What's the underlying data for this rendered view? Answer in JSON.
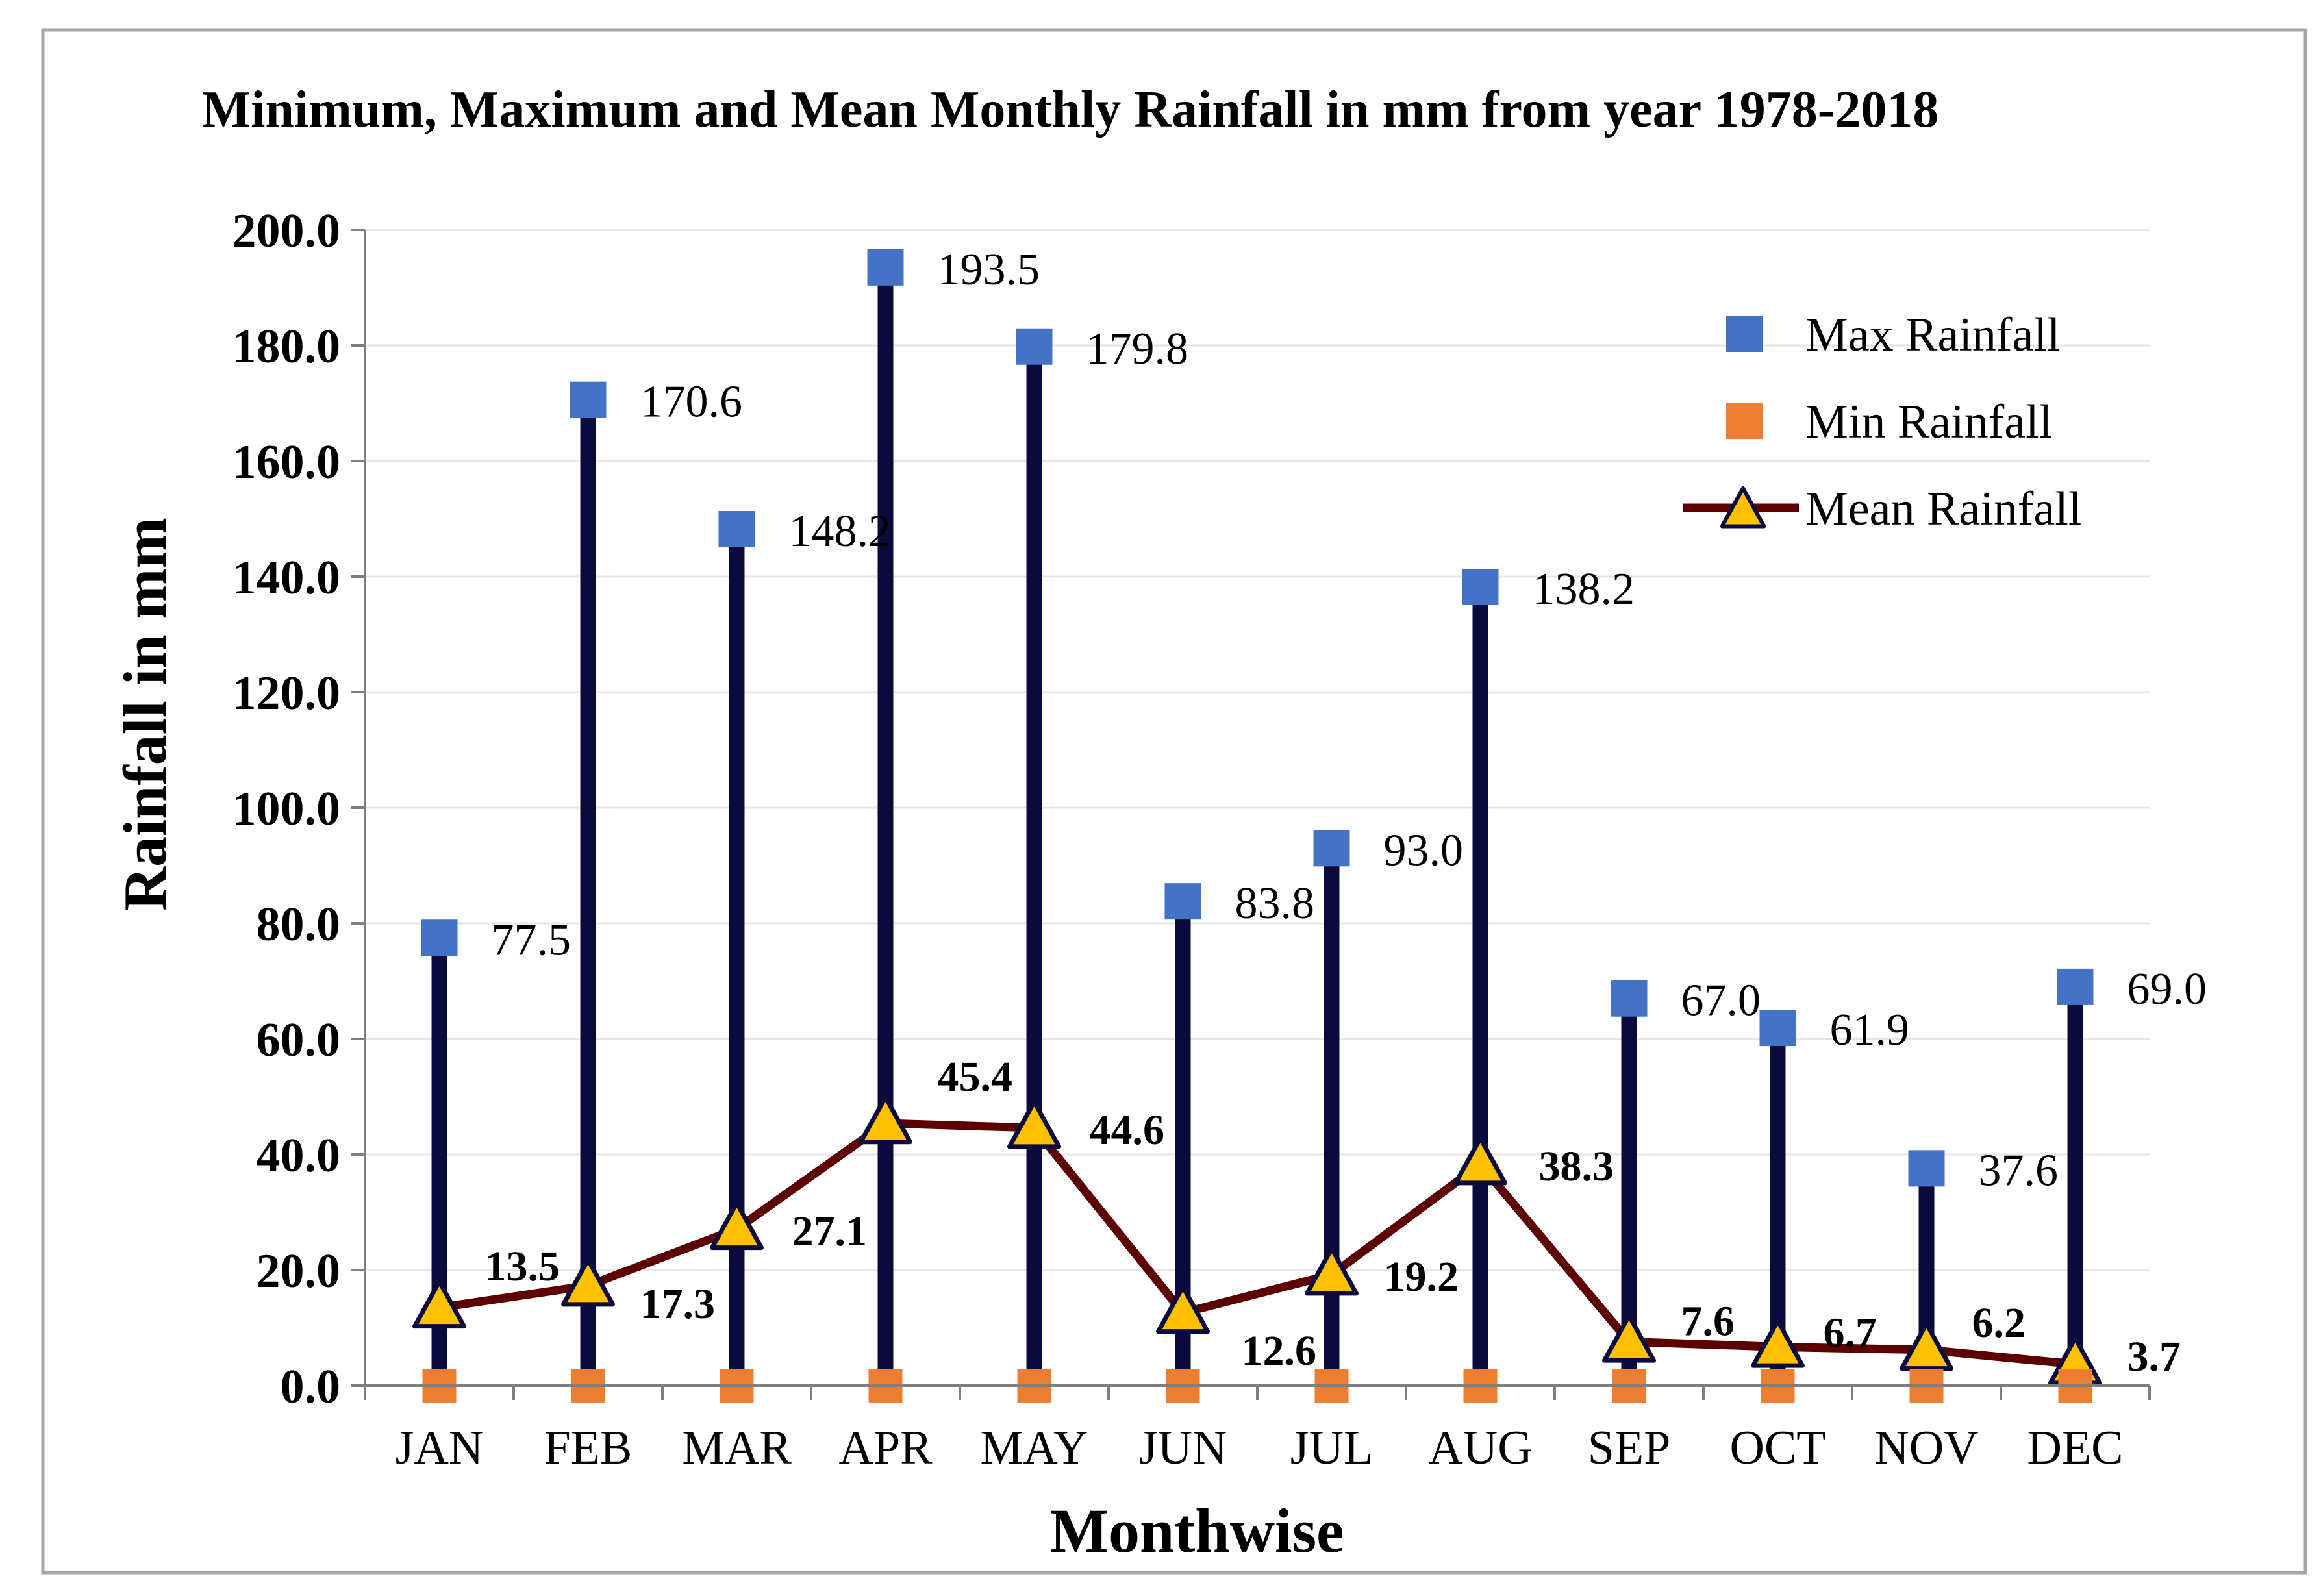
{
  "chart_data": {
    "type": "line",
    "title": "Minimum, Maximum and Mean Monthly Rainfall in mm from year 1978-2018",
    "xlabel": "Monthwise",
    "ylabel": "Rainfall in mm",
    "ylim": [
      0,
      200
    ],
    "ytick_step": 20,
    "ytick_labels": [
      "0.0",
      "20.0",
      "40.0",
      "60.0",
      "80.0",
      "100.0",
      "120.0",
      "140.0",
      "160.0",
      "180.0",
      "200.0"
    ],
    "grid": true,
    "legend_position": "top-right",
    "categories": [
      "JAN",
      "FEB",
      "MAR",
      "APR",
      "MAY",
      "JUN",
      "JUL",
      "AUG",
      "SEP",
      "OCT",
      "NOV",
      "DEC"
    ],
    "series": [
      {
        "name": "Max Rainfall",
        "marker": "square",
        "color": "#4472C4",
        "values": [
          77.5,
          170.6,
          148.2,
          193.5,
          179.8,
          83.8,
          93.0,
          138.2,
          67.0,
          61.9,
          37.6,
          69.0
        ],
        "labels": [
          "77.5",
          "170.6",
          "148.2",
          "193.5",
          "179.8",
          "83.8",
          "93.0",
          "138.2",
          "67.0",
          "61.9",
          "37.6",
          "69.0"
        ]
      },
      {
        "name": "Min Rainfall",
        "marker": "square",
        "color": "#ED7D31",
        "values": [
          0,
          0,
          0,
          0,
          0,
          0,
          0,
          0,
          0,
          0,
          0,
          0
        ]
      },
      {
        "name": "Mean Rainfall",
        "marker": "triangle",
        "color": "#5C0000",
        "marker_fill": "#FFC000",
        "marker_edge": "#0A0A3C",
        "values": [
          13.5,
          17.3,
          27.1,
          45.4,
          44.6,
          12.6,
          19.2,
          38.3,
          7.6,
          6.7,
          6.2,
          3.7
        ],
        "labels": [
          "13.5",
          "17.3",
          "27.1",
          "45.4",
          "44.6",
          "12.6",
          "19.2",
          "38.3",
          "7.6",
          "6.7",
          "6.2",
          "3.7"
        ]
      }
    ],
    "range_bar_color": "#0A0A3C"
  }
}
